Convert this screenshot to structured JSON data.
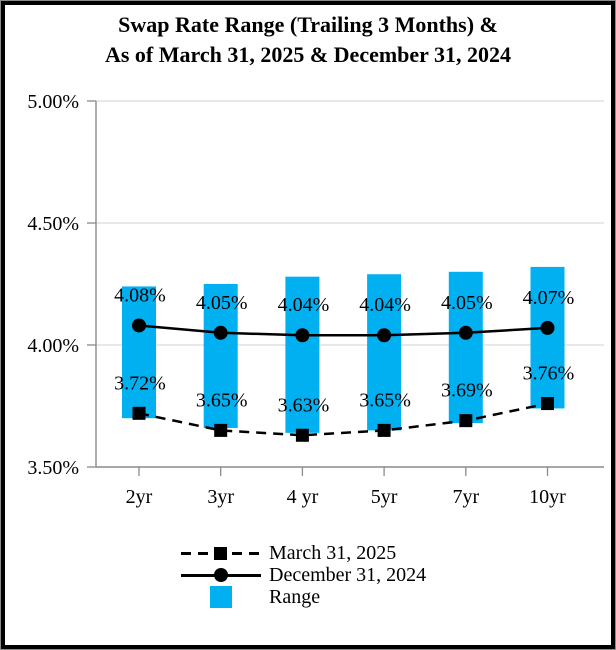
{
  "title": {
    "line1": "Swap Rate Range (Trailing 3 Months) &",
    "line2": "As of March 31, 2025 & December 31, 2024"
  },
  "colors": {
    "range_bar": "#00B0F0",
    "line_black": "#000000",
    "gridline": "#D9D9D9",
    "axis": "#8A8A8A",
    "text": "#000000"
  },
  "chart_data": {
    "type": "bar",
    "subtype": "floating-range-bars-with-lines",
    "title": "Swap Rate Range (Trailing 3 Months) & As of March 31, 2025 & December 31, 2024",
    "categories": [
      "2yr",
      "3yr",
      "4 yr",
      "5yr",
      "7yr",
      "10yr"
    ],
    "series": [
      {
        "name": "March 31, 2025",
        "type": "line",
        "line_style": "dashed",
        "marker": "square",
        "color": "#000000",
        "values": [
          3.72,
          3.65,
          3.63,
          3.65,
          3.69,
          3.76
        ],
        "labels": [
          "3.72%",
          "3.65%",
          "3.63%",
          "3.65%",
          "3.69%",
          "3.76%"
        ]
      },
      {
        "name": "December 31, 2024",
        "type": "line",
        "line_style": "solid",
        "marker": "circle",
        "color": "#000000",
        "values": [
          4.08,
          4.05,
          4.04,
          4.04,
          4.05,
          4.07
        ],
        "labels": [
          "4.08%",
          "4.05%",
          "4.04%",
          "4.04%",
          "4.05%",
          "4.07%"
        ]
      },
      {
        "name": "Range",
        "type": "floating-bar",
        "color": "#00B0F0",
        "low": [
          3.7,
          3.66,
          3.64,
          3.65,
          3.68,
          3.74
        ],
        "high": [
          4.24,
          4.25,
          4.28,
          4.29,
          4.3,
          4.32
        ]
      }
    ],
    "ylim": [
      3.5,
      5.0
    ],
    "yticks": [
      {
        "value": 5.0,
        "label": "5.00%"
      },
      {
        "value": 4.5,
        "label": "4.50%"
      },
      {
        "value": 4.0,
        "label": "4.00%"
      },
      {
        "value": 3.5,
        "label": "3.50%"
      }
    ],
    "grid": true,
    "legend_position": "bottom"
  },
  "legend": {
    "items": [
      {
        "label": "March 31, 2025"
      },
      {
        "label": "December 31, 2024"
      },
      {
        "label": "Range"
      }
    ]
  }
}
